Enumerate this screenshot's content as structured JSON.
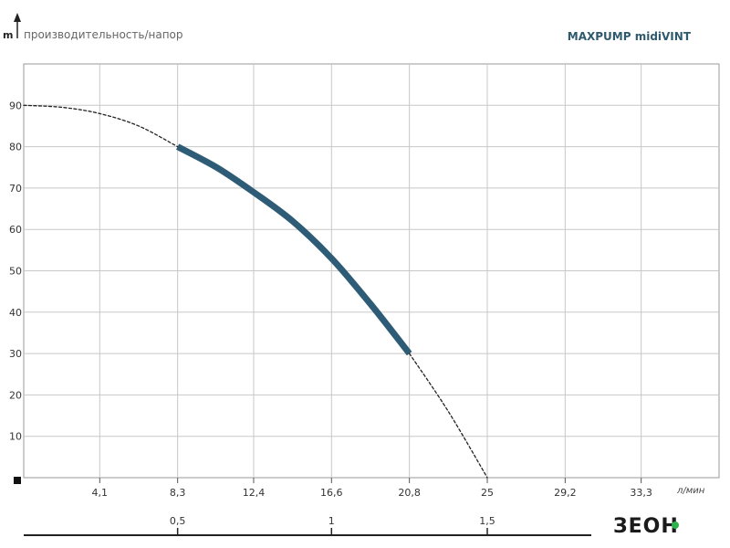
{
  "header": {
    "y_unit": "m",
    "subtitle": "производительность/напор",
    "title": "MAXPUMP midiVINT"
  },
  "logo": {
    "text": "ЗЕОН",
    "accent_color": "#2db34a"
  },
  "colors": {
    "curve": "#2e5c77",
    "dashed": "#222222",
    "grid": "#c8c8c8",
    "frame": "#9a9a9a"
  },
  "chart_data": {
    "type": "line",
    "y_ticks": [
      "10",
      "20",
      "30",
      "40",
      "50",
      "60",
      "70",
      "80",
      "90"
    ],
    "y_tick_values": [
      10,
      20,
      30,
      40,
      50,
      60,
      70,
      80,
      90
    ],
    "x_ticks": [
      "4,1",
      "8,3",
      "12,4",
      "16,6",
      "20,8",
      "25",
      "29,2",
      "33,3"
    ],
    "x_tick_values": [
      4.1,
      8.3,
      12.4,
      16.6,
      20.8,
      25,
      29.2,
      33.3
    ],
    "x_unit": "л/мин",
    "x2_ticks": [
      "0,5",
      "1",
      "1,5"
    ],
    "x2_tick_values": [
      0.5,
      1,
      1.5
    ],
    "xlim": [
      0,
      37.5
    ],
    "ylim": [
      0,
      100
    ],
    "grid": true,
    "series": [
      {
        "style": "solid",
        "x": [
          8.3,
          10.4,
          12.4,
          14.5,
          16.6,
          18.7,
          20.8
        ],
        "y": [
          80,
          75,
          69,
          62,
          53,
          42,
          30
        ]
      },
      {
        "style": "dashed",
        "x": [
          0,
          2.1,
          4.1,
          6.2,
          8.3
        ],
        "y": [
          90,
          89.5,
          88,
          85,
          80
        ]
      },
      {
        "style": "dashed",
        "x": [
          20.8,
          22.9,
          25
        ],
        "y": [
          30,
          16,
          0
        ]
      }
    ]
  }
}
